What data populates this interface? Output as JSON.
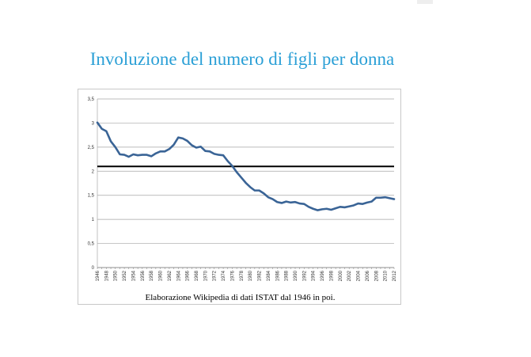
{
  "page": {
    "title": "Involuzione del numero di figli per donna",
    "caption": "Elaborazione Wikipedia di dati ISTAT dal 1946 in poi."
  },
  "colors": {
    "title": "#2a9fd6",
    "series_line": "#3a6496",
    "reference_line": "#000000",
    "grid": "#a6a6a6"
  },
  "chart_data": {
    "type": "line",
    "title": "",
    "xlabel": "",
    "ylabel": "",
    "ylim": [
      0,
      3.5
    ],
    "yticks": [
      "0",
      "0,5",
      "1",
      "1,5",
      "2",
      "2,5",
      "3",
      "3,5"
    ],
    "xticks": [
      "1946",
      "1948",
      "1950",
      "1952",
      "1954",
      "1956",
      "1958",
      "1960",
      "1962",
      "1964",
      "1966",
      "1968",
      "1970",
      "1972",
      "1974",
      "1976",
      "1978",
      "1980",
      "1982",
      "1984",
      "1986",
      "1988",
      "1990",
      "1992",
      "1994",
      "1996",
      "1998",
      "2000",
      "2002",
      "2004",
      "2006",
      "2008",
      "2010",
      "2012"
    ],
    "grid": true,
    "legend": "none",
    "reference_line": 2.1,
    "series": [
      {
        "x": [
          1946,
          1947,
          1948,
          1949,
          1950,
          1951,
          1952,
          1953,
          1954,
          1955,
          1956,
          1957,
          1958,
          1959,
          1960,
          1961,
          1962,
          1963,
          1964,
          1965,
          1966,
          1967,
          1968,
          1969,
          1970,
          1971,
          1972,
          1973,
          1974,
          1975,
          1976,
          1977,
          1978,
          1979,
          1980,
          1981,
          1982,
          1983,
          1984,
          1985,
          1986,
          1987,
          1988,
          1989,
          1990,
          1991,
          1992,
          1993,
          1994,
          1995,
          1996,
          1997,
          1998,
          1999,
          2000,
          2001,
          2002,
          2003,
          2004,
          2005,
          2006,
          2007,
          2008,
          2009,
          2010,
          2011,
          2012
        ],
        "values": [
          3.01,
          2.88,
          2.83,
          2.62,
          2.5,
          2.35,
          2.34,
          2.3,
          2.35,
          2.33,
          2.34,
          2.34,
          2.31,
          2.37,
          2.41,
          2.41,
          2.46,
          2.55,
          2.7,
          2.68,
          2.63,
          2.54,
          2.49,
          2.51,
          2.42,
          2.41,
          2.36,
          2.34,
          2.33,
          2.21,
          2.11,
          1.98,
          1.87,
          1.76,
          1.67,
          1.6,
          1.6,
          1.54,
          1.46,
          1.42,
          1.36,
          1.34,
          1.37,
          1.35,
          1.36,
          1.33,
          1.32,
          1.26,
          1.22,
          1.19,
          1.21,
          1.22,
          1.2,
          1.23,
          1.26,
          1.25,
          1.27,
          1.29,
          1.33,
          1.32,
          1.35,
          1.37,
          1.45,
          1.45,
          1.46,
          1.44,
          1.42
        ]
      }
    ]
  }
}
